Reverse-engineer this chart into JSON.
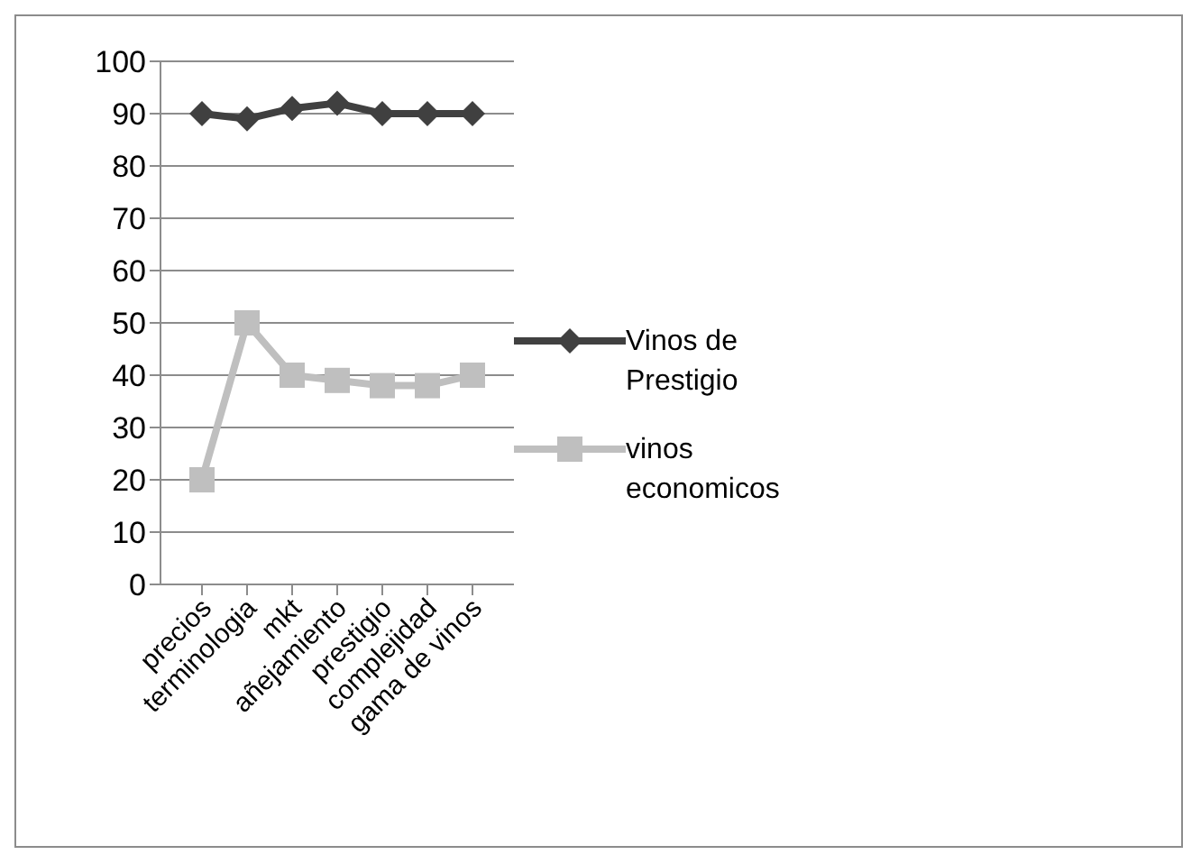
{
  "chart_data": {
    "type": "line",
    "categories": [
      "precios",
      "terminologia",
      "mkt",
      "añejamiento",
      "prestigio",
      "complejidad",
      "gama de vinos"
    ],
    "series": [
      {
        "name": "Vinos de Prestigio",
        "color": "#404040",
        "marker": "diamond",
        "values": [
          90,
          89,
          91,
          92,
          90,
          90,
          90
        ]
      },
      {
        "name": "vinos economicos",
        "color": "#bfbfbf",
        "marker": "square",
        "values": [
          20,
          50,
          40,
          39,
          38,
          38,
          40
        ]
      }
    ],
    "ylim": [
      0,
      100
    ],
    "yticks": [
      0,
      10,
      20,
      30,
      40,
      50,
      60,
      70,
      80,
      90,
      100
    ],
    "grid": "y",
    "legend": "right",
    "line_style": "solid"
  }
}
